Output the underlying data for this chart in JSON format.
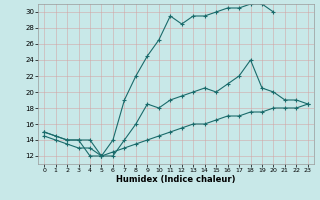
{
  "title": "",
  "xlabel": "Humidex (Indice chaleur)",
  "bg_color": "#c8e8e8",
  "grid_color": "#b0d0d0",
  "line_color": "#1a6b6b",
  "xlim": [
    -0.5,
    23.5
  ],
  "ylim": [
    11,
    31
  ],
  "xticks": [
    0,
    1,
    2,
    3,
    4,
    5,
    6,
    7,
    8,
    9,
    10,
    11,
    12,
    13,
    14,
    15,
    16,
    17,
    18,
    19,
    20,
    21,
    22,
    23
  ],
  "yticks": [
    12,
    14,
    16,
    18,
    20,
    22,
    24,
    26,
    28,
    30
  ],
  "curve1_x": [
    0,
    1,
    2,
    3,
    4,
    5,
    6,
    7,
    8,
    9,
    10,
    11,
    12,
    13,
    14,
    15,
    16,
    17,
    18,
    19,
    20
  ],
  "curve1_y": [
    15,
    14.5,
    14,
    14,
    14,
    12,
    14,
    19,
    22,
    24.5,
    26.5,
    29.5,
    28.5,
    29.5,
    29.5,
    30,
    30.5,
    30.5,
    31,
    31,
    30
  ],
  "curve2_x": [
    0,
    2,
    3,
    4,
    5,
    6,
    7,
    8,
    9,
    10,
    11,
    12,
    13,
    14,
    15,
    16,
    17,
    18,
    19,
    20,
    21,
    22,
    23
  ],
  "curve2_y": [
    15,
    14,
    14,
    12,
    12,
    12,
    14,
    16,
    18.5,
    18,
    19,
    19.5,
    20,
    20.5,
    20,
    21,
    22,
    24,
    20.5,
    20,
    19,
    19,
    18.5
  ],
  "curve3_x": [
    0,
    1,
    2,
    3,
    4,
    5,
    6,
    7,
    8,
    9,
    10,
    11,
    12,
    13,
    14,
    15,
    16,
    17,
    18,
    19,
    20,
    21,
    22,
    23
  ],
  "curve3_y": [
    14.5,
    14,
    13.5,
    13,
    13,
    12,
    12.5,
    13,
    13.5,
    14,
    14.5,
    15,
    15.5,
    16,
    16,
    16.5,
    17,
    17,
    17.5,
    17.5,
    18,
    18,
    18,
    18.5
  ]
}
